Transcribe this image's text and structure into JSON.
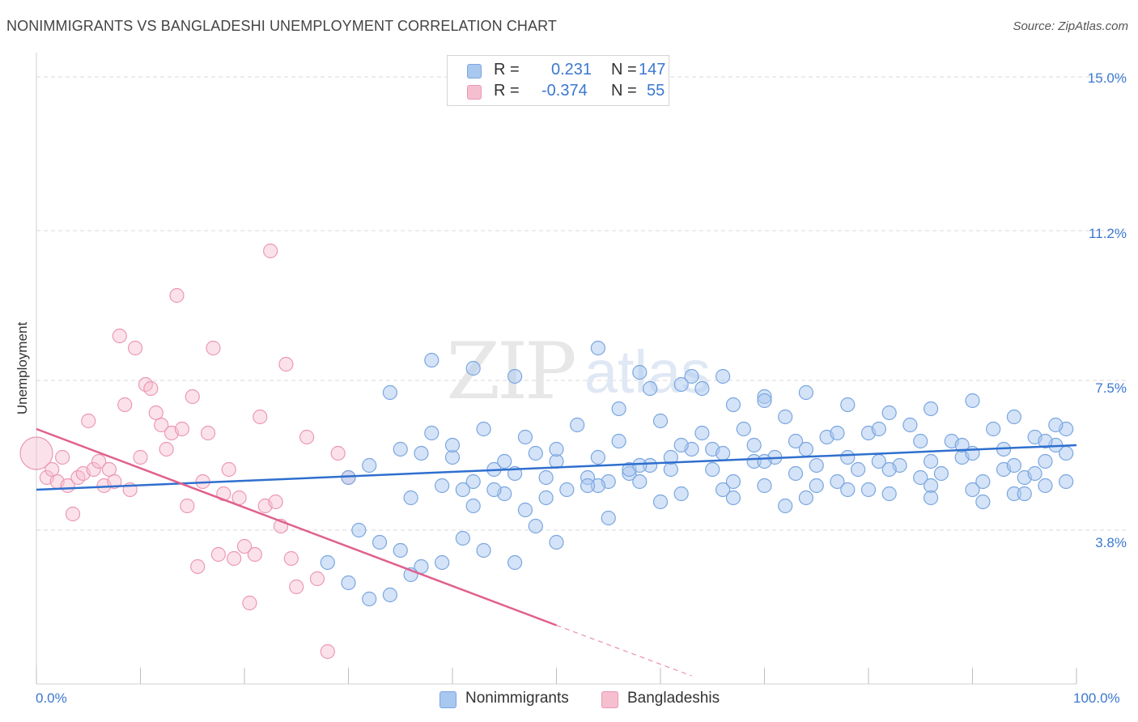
{
  "header": {
    "title": "NONIMMIGRANTS VS BANGLADESHI UNEMPLOYMENT CORRELATION CHART",
    "source": "Source: ZipAtlas.com"
  },
  "legend": {
    "nonimmigrants": {
      "r_label": "R =",
      "r_value": "0.231",
      "n_label": "N =",
      "n_value": "147"
    },
    "bangladeshis": {
      "r_label": "R =",
      "r_value": "-0.374",
      "n_label": "N =",
      "n_value": "55"
    }
  },
  "bottom_legend": {
    "nonimmigrants": "Nonimmigrants",
    "bangladeshis": "Bangladeshis"
  },
  "axes": {
    "ylabel": "Unemployment",
    "y_ticks": [
      "15.0%",
      "11.2%",
      "7.5%",
      "3.8%"
    ],
    "x_min_label": "0.0%",
    "x_max_label": "100.0%"
  },
  "watermark": {
    "zip": "ZIP",
    "atlas": "atlas"
  },
  "colors": {
    "blue_fill": "#a9c8ef",
    "blue_stroke": "#7aa6e0",
    "blue_line": "#2f6fcf",
    "pink_fill": "#f6bfd0",
    "pink_stroke": "#ec98b3",
    "pink_line": "#e0608e",
    "grid": "#d9d9d9",
    "tick_text": "#3b78d0"
  },
  "chart_data": {
    "type": "scatter",
    "title": "NONIMMIGRANTS VS BANGLADESHI UNEMPLOYMENT CORRELATION CHART",
    "xlabel": "",
    "ylabel": "Unemployment",
    "xlim": [
      0,
      100
    ],
    "ylim": [
      0,
      15.4
    ],
    "y_gridlines": [
      3.8,
      7.5,
      11.2,
      15.0
    ],
    "series": [
      {
        "name": "Nonimmigrants",
        "color": "#a9c8ef",
        "trend": {
          "x": [
            0,
            100
          ],
          "y": [
            4.8,
            5.9
          ]
        },
        "points": [
          [
            37,
            5.7
          ],
          [
            40,
            5.6
          ],
          [
            42,
            5.0
          ],
          [
            44,
            5.3
          ],
          [
            46,
            5.2
          ],
          [
            48,
            5.7
          ],
          [
            50,
            5.5
          ],
          [
            53,
            5.1
          ],
          [
            55,
            5.0
          ],
          [
            57,
            5.2
          ],
          [
            59,
            5.4
          ],
          [
            61,
            5.3
          ],
          [
            63,
            5.8
          ],
          [
            65,
            5.3
          ],
          [
            67,
            5.0
          ],
          [
            69,
            5.5
          ],
          [
            71,
            5.6
          ],
          [
            73,
            5.2
          ],
          [
            75,
            5.4
          ],
          [
            77,
            5.0
          ],
          [
            79,
            5.3
          ],
          [
            81,
            5.5
          ],
          [
            83,
            5.4
          ],
          [
            85,
            5.1
          ],
          [
            87,
            5.2
          ],
          [
            89,
            5.6
          ],
          [
            91,
            5.0
          ],
          [
            93,
            5.3
          ],
          [
            95,
            5.1
          ],
          [
            97,
            5.5
          ],
          [
            99,
            5.7
          ],
          [
            38,
            6.2
          ],
          [
            43,
            6.3
          ],
          [
            47,
            6.1
          ],
          [
            52,
            6.4
          ],
          [
            56,
            6.0
          ],
          [
            60,
            6.5
          ],
          [
            64,
            6.2
          ],
          [
            68,
            6.3
          ],
          [
            72,
            6.6
          ],
          [
            76,
            6.1
          ],
          [
            80,
            6.2
          ],
          [
            84,
            6.4
          ],
          [
            88,
            6.0
          ],
          [
            92,
            6.3
          ],
          [
            96,
            6.1
          ],
          [
            98,
            5.9
          ],
          [
            36,
            4.6
          ],
          [
            39,
            4.9
          ],
          [
            41,
            4.8
          ],
          [
            45,
            4.7
          ],
          [
            49,
            4.6
          ],
          [
            51,
            4.8
          ],
          [
            54,
            4.9
          ],
          [
            58,
            5.0
          ],
          [
            62,
            4.7
          ],
          [
            66,
            4.8
          ],
          [
            70,
            4.9
          ],
          [
            74,
            4.6
          ],
          [
            78,
            4.8
          ],
          [
            82,
            4.7
          ],
          [
            86,
            4.9
          ],
          [
            90,
            4.8
          ],
          [
            94,
            4.7
          ],
          [
            97,
            4.9
          ],
          [
            31,
            3.8
          ],
          [
            33,
            3.5
          ],
          [
            35,
            3.3
          ],
          [
            37,
            2.9
          ],
          [
            39,
            3.0
          ],
          [
            41,
            3.6
          ],
          [
            43,
            3.3
          ],
          [
            46,
            3.0
          ],
          [
            48,
            3.9
          ],
          [
            50,
            3.5
          ],
          [
            28,
            3.0
          ],
          [
            30,
            2.5
          ],
          [
            32,
            2.1
          ],
          [
            34,
            2.2
          ],
          [
            36,
            2.7
          ],
          [
            44,
            4.8
          ],
          [
            49,
            5.1
          ],
          [
            53,
            4.9
          ],
          [
            57,
            5.3
          ],
          [
            61,
            5.6
          ],
          [
            65,
            5.8
          ],
          [
            69,
            5.9
          ],
          [
            73,
            6.0
          ],
          [
            77,
            6.2
          ],
          [
            81,
            6.3
          ],
          [
            85,
            6.0
          ],
          [
            89,
            5.9
          ],
          [
            93,
            5.8
          ],
          [
            97,
            6.0
          ],
          [
            99,
            6.3
          ],
          [
            42,
            4.4
          ],
          [
            47,
            4.3
          ],
          [
            55,
            4.1
          ],
          [
            60,
            4.5
          ],
          [
            67,
            4.6
          ],
          [
            72,
            4.4
          ],
          [
            75,
            4.9
          ],
          [
            80,
            4.8
          ],
          [
            86,
            4.6
          ],
          [
            91,
            4.5
          ],
          [
            95,
            4.7
          ],
          [
            56,
            6.8
          ],
          [
            59,
            7.3
          ],
          [
            63,
            7.6
          ],
          [
            64,
            7.3
          ],
          [
            67,
            6.9
          ],
          [
            70,
            7.1
          ],
          [
            74,
            7.2
          ],
          [
            78,
            6.9
          ],
          [
            82,
            6.7
          ],
          [
            86,
            6.8
          ],
          [
            90,
            7.0
          ],
          [
            94,
            6.6
          ],
          [
            98,
            6.4
          ],
          [
            34,
            7.2
          ],
          [
            38,
            8.0
          ],
          [
            42,
            7.8
          ],
          [
            46,
            7.6
          ],
          [
            54,
            8.3
          ],
          [
            58,
            7.7
          ],
          [
            62,
            7.4
          ],
          [
            66,
            7.6
          ],
          [
            70,
            7.0
          ],
          [
            30,
            5.1
          ],
          [
            32,
            5.4
          ],
          [
            35,
            5.8
          ],
          [
            40,
            5.9
          ],
          [
            45,
            5.5
          ],
          [
            50,
            5.8
          ],
          [
            54,
            5.6
          ],
          [
            58,
            5.4
          ],
          [
            62,
            5.9
          ],
          [
            66,
            5.7
          ],
          [
            70,
            5.5
          ],
          [
            74,
            5.8
          ],
          [
            78,
            5.6
          ],
          [
            82,
            5.3
          ],
          [
            86,
            5.5
          ],
          [
            90,
            5.7
          ],
          [
            94,
            5.4
          ],
          [
            96,
            5.2
          ],
          [
            99,
            5.0
          ]
        ]
      },
      {
        "name": "Bangladeshis",
        "color": "#f6bfd0",
        "trend": {
          "x": [
            0,
            50
          ],
          "y": [
            6.3,
            1.45
          ],
          "dashed_to": [
            63,
            0.2
          ]
        },
        "points": [
          [
            0,
            5.7
          ],
          [
            1,
            5.1
          ],
          [
            1.5,
            5.3
          ],
          [
            2,
            5.0
          ],
          [
            2.5,
            5.6
          ],
          [
            3,
            4.9
          ],
          [
            3.5,
            4.2
          ],
          [
            4,
            5.1
          ],
          [
            4.5,
            5.2
          ],
          [
            5,
            6.5
          ],
          [
            5.5,
            5.3
          ],
          [
            6,
            5.5
          ],
          [
            6.5,
            4.9
          ],
          [
            7,
            5.3
          ],
          [
            7.5,
            5.0
          ],
          [
            8,
            8.6
          ],
          [
            8.5,
            6.9
          ],
          [
            9,
            4.8
          ],
          [
            9.5,
            8.3
          ],
          [
            10,
            5.6
          ],
          [
            10.5,
            7.4
          ],
          [
            11,
            7.3
          ],
          [
            11.5,
            6.7
          ],
          [
            12,
            6.4
          ],
          [
            12.5,
            5.8
          ],
          [
            13,
            6.2
          ],
          [
            13.5,
            9.6
          ],
          [
            14,
            6.3
          ],
          [
            14.5,
            4.4
          ],
          [
            15,
            7.1
          ],
          [
            15.5,
            2.9
          ],
          [
            16,
            5.0
          ],
          [
            16.5,
            6.2
          ],
          [
            17,
            8.3
          ],
          [
            17.5,
            3.2
          ],
          [
            18,
            4.7
          ],
          [
            18.5,
            5.3
          ],
          [
            19,
            3.1
          ],
          [
            19.5,
            4.6
          ],
          [
            20,
            3.4
          ],
          [
            20.5,
            2.0
          ],
          [
            21,
            3.2
          ],
          [
            21.5,
            6.6
          ],
          [
            22,
            4.4
          ],
          [
            22.5,
            10.7
          ],
          [
            23,
            4.5
          ],
          [
            23.5,
            3.9
          ],
          [
            24,
            7.9
          ],
          [
            24.5,
            3.1
          ],
          [
            25,
            2.4
          ],
          [
            26,
            6.1
          ],
          [
            27,
            2.6
          ],
          [
            28,
            0.8
          ],
          [
            29,
            5.7
          ],
          [
            30,
            5.1
          ]
        ]
      }
    ]
  }
}
